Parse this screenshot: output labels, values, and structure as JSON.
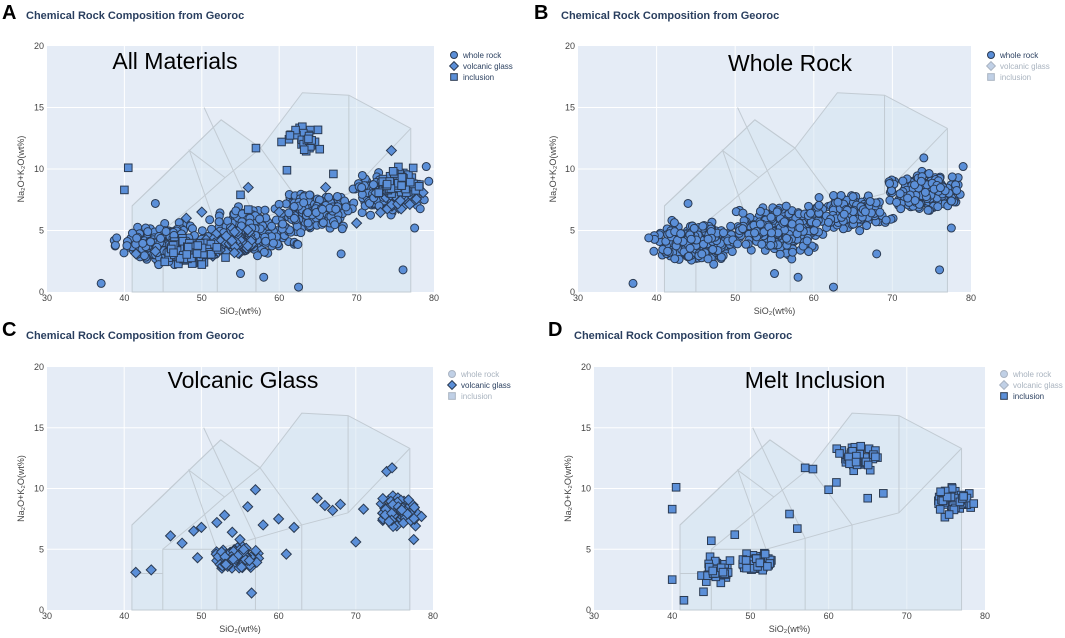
{
  "figure": {
    "panel_labels": [
      "A",
      "B",
      "C",
      "D"
    ]
  },
  "chart_data": [
    {
      "panel": "A",
      "type": "scatter",
      "title": "Chemical Rock Composition from Georoc",
      "annotation": "All Materials",
      "xlabel": "SiO₂(wt%)",
      "ylabel": "Na₂O+K₂O(wt%)",
      "xlim": [
        30,
        80
      ],
      "ylim": [
        0,
        20
      ],
      "xticks": [
        "30",
        "40",
        "50",
        "60",
        "70",
        "80"
      ],
      "yticks": [
        "0",
        "5",
        "10",
        "15",
        "20"
      ],
      "legend": [
        "whole rock",
        "volcanic glass",
        "inclusion"
      ],
      "active_series": [
        "whole rock",
        "volcanic glass",
        "inclusion"
      ],
      "series": [
        {
          "name": "whole rock",
          "marker": "circle",
          "clusters": [
            {
              "x": [
                38,
                52
              ],
              "y": [
                2,
                6
              ],
              "n": 260
            },
            {
              "x": [
                48,
                64
              ],
              "y": [
                2.5,
                7.5
              ],
              "n": 240
            },
            {
              "x": [
                58,
                72
              ],
              "y": [
                4.5,
                8.5
              ],
              "n": 160
            },
            {
              "x": [
                68,
                80
              ],
              "y": [
                6,
                10
              ],
              "n": 200
            }
          ],
          "outliers": [
            [
              37,
              0.7
            ],
            [
              39,
              4.4
            ],
            [
              44,
              7.2
            ],
            [
              62.5,
              0.4
            ],
            [
              68,
              3.1
            ],
            [
              76,
              1.8
            ],
            [
              77.5,
              5.2
            ],
            [
              79,
              10.2
            ],
            [
              55,
              1.5
            ],
            [
              58,
              1.2
            ]
          ]
        },
        {
          "name": "volcanic glass",
          "marker": "diamond",
          "clusters": [
            {
              "x": [
                50,
                58
              ],
              "y": [
                2.5,
                5.5
              ],
              "n": 60
            },
            {
              "x": [
                72,
                79
              ],
              "y": [
                6,
                10
              ],
              "n": 60
            }
          ],
          "outliers": [
            [
              41.5,
              3.1
            ],
            [
              44,
              3.3
            ],
            [
              48,
              6
            ],
            [
              50,
              6.5
            ],
            [
              56,
              8.5
            ],
            [
              60,
              6.5
            ],
            [
              66,
              8.5
            ],
            [
              70,
              5.6
            ],
            [
              74.5,
              11.5
            ]
          ]
        },
        {
          "name": "inclusion",
          "marker": "square",
          "clusters": [
            {
              "x": [
                43,
                54
              ],
              "y": [
                1.5,
                5
              ],
              "n": 90
            },
            {
              "x": [
                60,
                66
              ],
              "y": [
                11,
                14
              ],
              "n": 35
            },
            {
              "x": [
                72,
                79
              ],
              "y": [
                7.5,
                10.5
              ],
              "n": 60
            }
          ],
          "outliers": [
            [
              40.5,
              10.1
            ],
            [
              40,
              8.3
            ],
            [
              57,
              11.7
            ],
            [
              61,
              9.9
            ],
            [
              67,
              9.6
            ],
            [
              55,
              7.9
            ],
            [
              56,
              6.7
            ]
          ]
        }
      ]
    },
    {
      "panel": "B",
      "type": "scatter",
      "title": "Chemical Rock Composition from Georoc",
      "annotation": "Whole Rock",
      "xlabel": "SiO₂(wt%)",
      "ylabel": "Na₂O+K₂O(wt%)",
      "xlim": [
        30,
        80
      ],
      "ylim": [
        0,
        20
      ],
      "xticks": [
        "30",
        "40",
        "50",
        "60",
        "70",
        "80"
      ],
      "yticks": [
        "0",
        "5",
        "10",
        "15",
        "20"
      ],
      "legend": [
        "whole rock",
        "volcanic glass",
        "inclusion"
      ],
      "active_series": [
        "whole rock"
      ],
      "series": [
        {
          "name": "whole rock",
          "marker": "circle",
          "clusters": [
            {
              "x": [
                38,
                52
              ],
              "y": [
                2,
                6
              ],
              "n": 300
            },
            {
              "x": [
                48,
                64
              ],
              "y": [
                2.5,
                7.5
              ],
              "n": 280
            },
            {
              "x": [
                58,
                72
              ],
              "y": [
                4.5,
                8.5
              ],
              "n": 190
            },
            {
              "x": [
                68,
                80
              ],
              "y": [
                6,
                10
              ],
              "n": 240
            }
          ],
          "outliers": [
            [
              37,
              0.7
            ],
            [
              39,
              4.4
            ],
            [
              44,
              7.2
            ],
            [
              62.5,
              0.4
            ],
            [
              68,
              3.1
            ],
            [
              76,
              1.8
            ],
            [
              77.5,
              5.2
            ],
            [
              79,
              10.2
            ],
            [
              55,
              1.5
            ],
            [
              58,
              1.2
            ],
            [
              74,
              10.9
            ]
          ]
        }
      ]
    },
    {
      "panel": "C",
      "type": "scatter",
      "title": "Chemical Rock Composition from Georoc",
      "annotation": "Volcanic Glass",
      "xlabel": "SiO₂(wt%)",
      "ylabel": "Na₂O+K₂O(wt%)",
      "xlim": [
        30,
        80
      ],
      "ylim": [
        0,
        20
      ],
      "xticks": [
        "30",
        "40",
        "50",
        "60",
        "70",
        "80"
      ],
      "yticks": [
        "0",
        "5",
        "10",
        "15",
        "20"
      ],
      "legend": [
        "whole rock",
        "volcanic glass",
        "inclusion"
      ],
      "active_series": [
        "volcanic glass"
      ],
      "series": [
        {
          "name": "volcanic glass",
          "marker": "diamond",
          "clusters": [
            {
              "x": [
                51,
                58
              ],
              "y": [
                3,
                5.5
              ],
              "n": 110
            },
            {
              "x": [
                72,
                79
              ],
              "y": [
                6.2,
                9.8
              ],
              "n": 120
            }
          ],
          "outliers": [
            [
              41.5,
              3.1
            ],
            [
              43.5,
              3.3
            ],
            [
              46,
              6.1
            ],
            [
              47.5,
              5.5
            ],
            [
              49,
              6.5
            ],
            [
              50,
              6.8
            ],
            [
              49.5,
              4.3
            ],
            [
              52,
              7.2
            ],
            [
              53,
              7.8
            ],
            [
              54,
              6.4
            ],
            [
              55,
              5.8
            ],
            [
              56,
              8.5
            ],
            [
              57,
              9.9
            ],
            [
              58,
              7
            ],
            [
              60,
              7.5
            ],
            [
              61,
              4.6
            ],
            [
              62,
              6.8
            ],
            [
              56.5,
              1.4
            ],
            [
              65,
              9.2
            ],
            [
              66,
              8.6
            ],
            [
              67,
              8.2
            ],
            [
              68,
              8.7
            ],
            [
              70,
              5.6
            ],
            [
              71,
              8.3
            ],
            [
              74,
              11.4
            ],
            [
              74.7,
              11.7
            ],
            [
              77.5,
              5.8
            ]
          ]
        }
      ]
    },
    {
      "panel": "D",
      "type": "scatter",
      "title": "Chemical Rock Composition from Georoc",
      "annotation": "Melt Inclusion",
      "xlabel": "SiO₂(wt%)",
      "ylabel": "Na₂O+K₂O(wt%)",
      "xlim": [
        30,
        80
      ],
      "ylim": [
        0,
        20
      ],
      "xticks": [
        "30",
        "40",
        "50",
        "60",
        "70",
        "80"
      ],
      "yticks": [
        "0",
        "5",
        "10",
        "15",
        "20"
      ],
      "legend": [
        "whole rock",
        "volcanic glass",
        "inclusion"
      ],
      "active_series": [
        "inclusion"
      ],
      "series": [
        {
          "name": "inclusion",
          "marker": "square",
          "clusters": [
            {
              "x": [
                43,
                48
              ],
              "y": [
                2,
                4.5
              ],
              "n": 50
            },
            {
              "x": [
                47,
                54
              ],
              "y": [
                3,
                5
              ],
              "n": 60
            },
            {
              "x": [
                60,
                67
              ],
              "y": [
                11,
                14
              ],
              "n": 50
            },
            {
              "x": [
                73,
                79
              ],
              "y": [
                7.5,
                10.5
              ],
              "n": 70
            }
          ],
          "outliers": [
            [
              40.5,
              10.1
            ],
            [
              40,
              8.3
            ],
            [
              40,
              2.5
            ],
            [
              41.5,
              0.8
            ],
            [
              44,
              1.5
            ],
            [
              45,
              5.7
            ],
            [
              48,
              6.2
            ],
            [
              55,
              7.9
            ],
            [
              56,
              6.7
            ],
            [
              57,
              11.7
            ],
            [
              58,
              11.6
            ],
            [
              60,
              9.9
            ],
            [
              61,
              10.5
            ],
            [
              67,
              9.6
            ],
            [
              65,
              9.2
            ]
          ]
        }
      ]
    }
  ]
}
